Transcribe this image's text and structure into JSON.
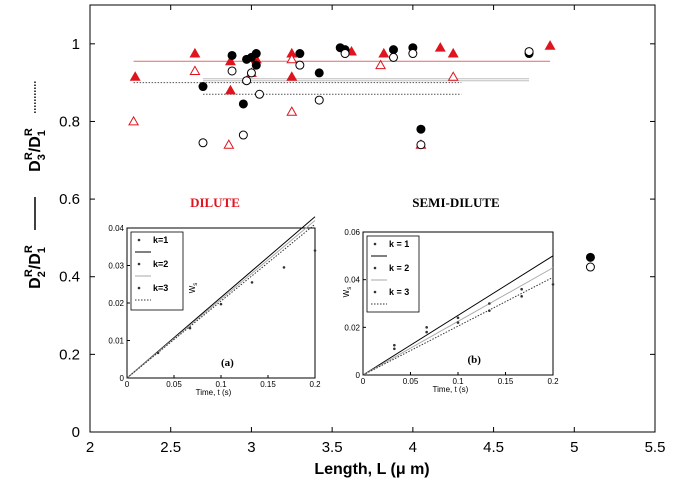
{
  "chart_data": {
    "type": "scatter",
    "xlabel": "Length, L (μ m)",
    "ylabel_parts": {
      "first": "D",
      "first_sup": "R",
      "first_sub": "2",
      "slash": "/D",
      "second_sup": "R",
      "second_sub": "1",
      "third": "D",
      "third_sup": "R",
      "third_sub": "3",
      "slash2": "/D",
      "fourth_sup": "R",
      "fourth_sub": "1"
    },
    "xlim": [
      2,
      5.5
    ],
    "ylim": [
      0,
      1.1
    ],
    "xticks": [
      "2",
      "2.5",
      "3",
      "3.5",
      "4",
      "4.5",
      "5",
      "5.5"
    ],
    "yticks": [
      "0",
      "0.2",
      "0.4",
      "0.6",
      "0.8",
      "1"
    ],
    "regions": {
      "dilute_label": "DILUTE",
      "semidilute_label": "SEMI-DILUTE"
    },
    "series": [
      {
        "marker": "filled-triangle",
        "color": "#e0141e",
        "points": [
          [
            2.28,
            0.915
          ],
          [
            2.65,
            0.975
          ],
          [
            2.87,
            0.955
          ],
          [
            2.87,
            0.88
          ],
          [
            3.03,
            0.96
          ],
          [
            3.25,
            0.975
          ],
          [
            3.25,
            0.915
          ],
          [
            3.62,
            0.98
          ],
          [
            3.82,
            0.975
          ],
          [
            4.17,
            0.99
          ],
          [
            4.25,
            0.975
          ],
          [
            4.85,
            0.995
          ]
        ]
      },
      {
        "marker": "open-triangle",
        "color": "#e0141e",
        "points": [
          [
            2.27,
            0.8
          ],
          [
            2.65,
            0.93
          ],
          [
            2.86,
            0.74
          ],
          [
            3.0,
            0.925
          ],
          [
            3.25,
            0.825
          ],
          [
            3.25,
            0.96
          ],
          [
            3.8,
            0.945
          ],
          [
            4.05,
            0.74
          ],
          [
            4.25,
            0.915
          ]
        ]
      },
      {
        "marker": "filled-circle",
        "color": "#000000",
        "points": [
          [
            2.7,
            0.89
          ],
          [
            2.88,
            0.97
          ],
          [
            2.95,
            0.845
          ],
          [
            2.97,
            0.96
          ],
          [
            3.0,
            0.965
          ],
          [
            3.03,
            0.975
          ],
          [
            3.03,
            0.945
          ],
          [
            3.3,
            0.975
          ],
          [
            3.42,
            0.925
          ],
          [
            3.55,
            0.99
          ],
          [
            3.58,
            0.985
          ],
          [
            3.88,
            0.985
          ],
          [
            4.0,
            0.99
          ],
          [
            4.05,
            0.78
          ],
          [
            4.72,
            0.975
          ],
          [
            5.1,
            0.45
          ]
        ]
      },
      {
        "marker": "open-circle",
        "color": "#000000",
        "points": [
          [
            2.7,
            0.745
          ],
          [
            2.88,
            0.93
          ],
          [
            2.95,
            0.765
          ],
          [
            2.97,
            0.905
          ],
          [
            3.0,
            0.925
          ],
          [
            3.05,
            0.87
          ],
          [
            3.3,
            0.945
          ],
          [
            3.42,
            0.855
          ],
          [
            3.58,
            0.975
          ],
          [
            3.88,
            0.965
          ],
          [
            4.05,
            0.74
          ],
          [
            4.0,
            0.975
          ],
          [
            4.72,
            0.98
          ],
          [
            5.1,
            0.425
          ]
        ]
      }
    ],
    "reference_lines": [
      {
        "style": "solid",
        "color": "#e46a6a",
        "x": [
          2.27,
          4.85
        ],
        "y": 0.955
      },
      {
        "style": "solid",
        "color": "#bdbdbd",
        "x": [
          2.7,
          4.72
        ],
        "y": 0.91
      },
      {
        "style": "solid",
        "color": "#bdbdbd",
        "x": [
          2.7,
          4.72
        ],
        "y": 0.905
      },
      {
        "style": "dotted",
        "color": "#555555",
        "x": [
          2.27,
          4.3
        ],
        "y": 0.9
      },
      {
        "style": "dotted",
        "color": "#555555",
        "x": [
          2.7,
          4.3
        ],
        "y": 0.87
      }
    ],
    "insets": [
      {
        "id": "a",
        "panel_label": "(a)",
        "xlabel": "Time, t (s)",
        "ylabel": "W",
        "ylabel_sub": "s",
        "xlim": [
          0,
          0.2
        ],
        "ylim": [
          0,
          0.04
        ],
        "xticks": [
          "0",
          "0.05",
          "0.1",
          "0.15",
          "0.2"
        ],
        "yticks": [
          "0",
          "0.01",
          "0.02",
          "0.03",
          "0.04"
        ],
        "legend": [
          "k=1",
          "k=2",
          "k=3"
        ],
        "points": [
          [
            0.033,
            0.0067
          ],
          [
            0.067,
            0.0133
          ],
          [
            0.1,
            0.0197
          ],
          [
            0.133,
            0.0255
          ],
          [
            0.167,
            0.0295
          ],
          [
            0.2,
            0.034
          ]
        ],
        "lines": [
          {
            "style": "solid",
            "color": "#000000",
            "slope": 0.215
          },
          {
            "style": "solid",
            "color": "#aaaaaa",
            "slope": 0.21
          },
          {
            "style": "dotted",
            "color": "#333333",
            "slope": 0.205
          }
        ]
      },
      {
        "id": "b",
        "panel_label": "(b)",
        "xlabel": "Time, t (s)",
        "ylabel": "W",
        "ylabel_sub": "s",
        "xlim": [
          0,
          0.2
        ],
        "ylim": [
          0,
          0.06
        ],
        "xticks": [
          "0",
          "0.05",
          "0.1",
          "0.15",
          "0.2"
        ],
        "yticks": [
          "0",
          "0.02",
          "0.04",
          "0.06"
        ],
        "legend": [
          "k = 1",
          "k = 2",
          "k = 3"
        ],
        "points": [
          [
            0.033,
            0.0125
          ],
          [
            0.033,
            0.011
          ],
          [
            0.067,
            0.02
          ],
          [
            0.067,
            0.018
          ],
          [
            0.1,
            0.024
          ],
          [
            0.1,
            0.022
          ],
          [
            0.133,
            0.03
          ],
          [
            0.133,
            0.027
          ],
          [
            0.167,
            0.036
          ],
          [
            0.167,
            0.033
          ],
          [
            0.2,
            0.038
          ]
        ],
        "lines": [
          {
            "style": "solid",
            "color": "#000000",
            "slope": 0.25
          },
          {
            "style": "solid",
            "color": "#aaaaaa",
            "slope": 0.225
          },
          {
            "style": "dotted",
            "color": "#333333",
            "slope": 0.205
          }
        ]
      }
    ]
  }
}
